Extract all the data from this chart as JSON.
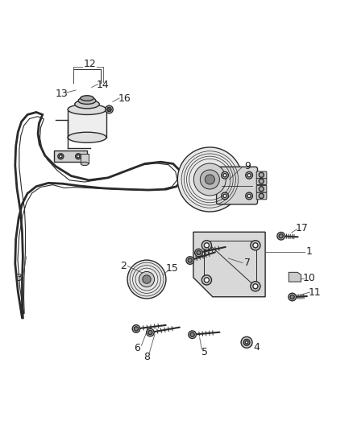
{
  "title": "",
  "background_color": "#ffffff",
  "line_color": "#2a2a2a",
  "label_color": "#222222",
  "label_fontsize": 9,
  "fig_width": 4.38,
  "fig_height": 5.33,
  "dpi": 100
}
